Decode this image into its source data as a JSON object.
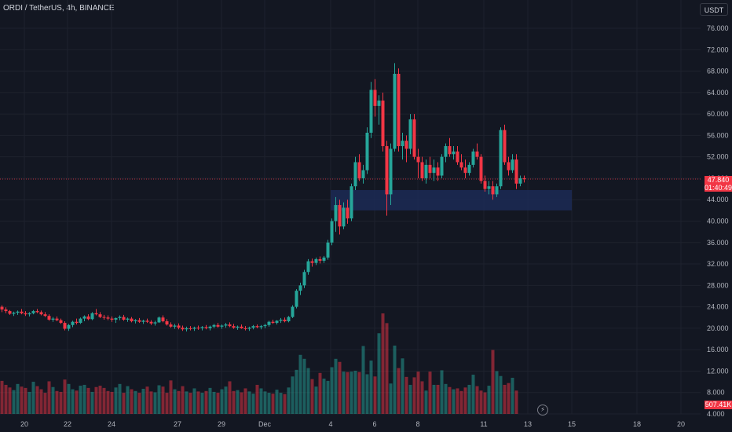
{
  "title": "ORDI / TetherUS, 4h, BINANCE",
  "currency": "USDT",
  "last_price": "47.840",
  "countdown": "01:40:49",
  "volume_label": "507.41K",
  "colors": {
    "up": "#26a69a",
    "down": "#f23645",
    "background": "#131722",
    "grid": "#1e222d",
    "zone": "#1c2a55"
  },
  "chart_data": {
    "type": "candlestick",
    "interval": "4h",
    "symbol": "ORDI / TetherUS",
    "exchange": "BINANCE",
    "y_axis": {
      "min": 4,
      "max": 76,
      "ticks": [
        "76.000",
        "72.000",
        "68.000",
        "64.000",
        "60.000",
        "56.000",
        "52.000",
        "48.000",
        "44.000",
        "40.000",
        "36.000",
        "32.000",
        "28.000",
        "24.000",
        "20.000",
        "16.000",
        "12.000",
        "8.000",
        "4.000"
      ]
    },
    "x_axis": {
      "ticks": [
        "20",
        "22",
        "24",
        "27",
        "29",
        "Dec",
        "4",
        "6",
        "8",
        "11",
        "13",
        "15",
        "18",
        "20"
      ]
    },
    "last_price": 47.84,
    "support_zone": {
      "from": 42.0,
      "to": 45.8
    },
    "candles": [
      [
        24.0,
        24.3,
        23.0,
        23.5
      ],
      [
        23.5,
        23.9,
        22.8,
        23.2
      ],
      [
        23.2,
        23.4,
        22.5,
        22.7
      ],
      [
        22.7,
        23.1,
        22.3,
        22.9
      ],
      [
        22.9,
        23.3,
        22.5,
        23.1
      ],
      [
        23.1,
        23.6,
        22.6,
        22.8
      ],
      [
        22.8,
        23.2,
        22.3,
        22.6
      ],
      [
        22.6,
        23.0,
        22.2,
        22.8
      ],
      [
        22.8,
        23.4,
        22.6,
        23.2
      ],
      [
        23.2,
        23.6,
        22.8,
        23.0
      ],
      [
        23.0,
        23.3,
        22.4,
        22.6
      ],
      [
        22.6,
        23.0,
        22.1,
        22.3
      ],
      [
        22.3,
        22.6,
        21.4,
        21.6
      ],
      [
        21.6,
        22.1,
        21.2,
        21.8
      ],
      [
        21.8,
        22.2,
        21.3,
        21.5
      ],
      [
        21.5,
        21.8,
        20.8,
        21.0
      ],
      [
        21.0,
        21.3,
        19.6,
        19.9
      ],
      [
        19.9,
        20.8,
        19.5,
        20.6
      ],
      [
        20.6,
        21.4,
        20.2,
        21.2
      ],
      [
        21.2,
        21.8,
        20.7,
        21.0
      ],
      [
        21.0,
        22.0,
        20.8,
        21.8
      ],
      [
        21.8,
        22.4,
        21.3,
        22.2
      ],
      [
        22.2,
        22.6,
        21.5,
        21.7
      ],
      [
        21.7,
        23.0,
        21.5,
        22.8
      ],
      [
        22.8,
        23.6,
        22.4,
        22.6
      ],
      [
        22.6,
        23.0,
        21.9,
        22.1
      ],
      [
        22.1,
        22.5,
        21.6,
        22.0
      ],
      [
        22.0,
        22.4,
        21.5,
        21.8
      ],
      [
        21.8,
        22.2,
        21.2,
        21.6
      ],
      [
        21.6,
        22.0,
        21.0,
        21.9
      ],
      [
        21.9,
        22.4,
        21.5,
        22.1
      ],
      [
        22.1,
        22.5,
        21.4,
        21.6
      ],
      [
        21.6,
        22.0,
        21.2,
        21.8
      ],
      [
        21.8,
        22.1,
        21.1,
        21.3
      ],
      [
        21.3,
        21.7,
        20.9,
        21.5
      ],
      [
        21.5,
        21.9,
        21.0,
        21.2
      ],
      [
        21.2,
        21.6,
        20.8,
        21.4
      ],
      [
        21.4,
        21.8,
        21.0,
        21.2
      ],
      [
        21.2,
        21.5,
        20.6,
        20.9
      ],
      [
        20.9,
        21.4,
        20.5,
        21.1
      ],
      [
        21.1,
        22.2,
        21.0,
        22.0
      ],
      [
        22.0,
        22.4,
        21.1,
        21.3
      ],
      [
        21.3,
        21.7,
        20.5,
        20.7
      ],
      [
        20.7,
        21.1,
        20.1,
        20.3
      ],
      [
        20.3,
        20.8,
        19.9,
        20.5
      ],
      [
        20.5,
        20.9,
        19.8,
        20.1
      ],
      [
        20.1,
        20.5,
        19.5,
        19.8
      ],
      [
        19.8,
        20.3,
        19.4,
        20.0
      ],
      [
        20.0,
        20.4,
        19.6,
        19.9
      ],
      [
        19.9,
        20.3,
        19.5,
        20.1
      ],
      [
        20.1,
        20.5,
        19.7,
        20.0
      ],
      [
        20.0,
        20.4,
        19.6,
        20.2
      ],
      [
        20.2,
        20.6,
        19.8,
        20.0
      ],
      [
        20.0,
        20.5,
        19.6,
        20.3
      ],
      [
        20.3,
        20.8,
        20.0,
        20.6
      ],
      [
        20.6,
        21.0,
        20.1,
        20.3
      ],
      [
        20.3,
        20.7,
        19.9,
        20.5
      ],
      [
        20.5,
        21.0,
        20.1,
        20.7
      ],
      [
        20.7,
        21.1,
        20.2,
        20.4
      ],
      [
        20.4,
        20.8,
        19.9,
        20.1
      ],
      [
        20.1,
        20.5,
        19.7,
        20.3
      ],
      [
        20.3,
        20.7,
        19.9,
        20.0
      ],
      [
        20.0,
        20.4,
        19.6,
        19.9
      ],
      [
        19.9,
        20.3,
        19.5,
        20.1
      ],
      [
        20.1,
        20.6,
        19.8,
        20.4
      ],
      [
        20.4,
        20.7,
        20.0,
        20.2
      ],
      [
        20.2,
        20.6,
        19.8,
        20.4
      ],
      [
        20.4,
        20.8,
        20.0,
        20.6
      ],
      [
        20.6,
        21.4,
        20.3,
        21.2
      ],
      [
        21.2,
        21.6,
        20.8,
        21.0
      ],
      [
        21.0,
        21.5,
        20.7,
        21.4
      ],
      [
        21.4,
        21.9,
        21.0,
        21.6
      ],
      [
        21.6,
        22.0,
        21.1,
        21.3
      ],
      [
        21.3,
        22.3,
        21.1,
        22.1
      ],
      [
        22.1,
        24.3,
        21.9,
        24.0
      ],
      [
        24.0,
        27.3,
        23.7,
        27.0
      ],
      [
        27.0,
        28.5,
        26.2,
        28.0
      ],
      [
        28.0,
        30.9,
        27.5,
        30.5
      ],
      [
        30.5,
        32.9,
        30.0,
        32.5
      ],
      [
        32.5,
        33.0,
        31.5,
        32.2
      ],
      [
        32.2,
        33.2,
        31.8,
        32.9
      ],
      [
        32.9,
        33.4,
        32.1,
        32.6
      ],
      [
        32.6,
        33.5,
        32.2,
        33.2
      ],
      [
        33.2,
        36.5,
        32.8,
        36.0
      ],
      [
        36.0,
        40.5,
        35.5,
        40.0
      ],
      [
        40.0,
        44.5,
        38.0,
        43.0
      ],
      [
        43.0,
        44.0,
        37.5,
        39.0
      ],
      [
        39.0,
        43.5,
        38.5,
        42.5
      ],
      [
        42.5,
        44.0,
        39.5,
        40.5
      ],
      [
        40.5,
        47.0,
        40.0,
        46.5
      ],
      [
        46.5,
        52.0,
        45.8,
        51.0
      ],
      [
        51.0,
        52.5,
        47.5,
        48.0
      ],
      [
        48.0,
        50.5,
        47.0,
        49.5
      ],
      [
        49.5,
        57.5,
        48.8,
        56.5
      ],
      [
        56.5,
        66.0,
        55.5,
        64.5
      ],
      [
        64.5,
        66.5,
        59.5,
        61.5
      ],
      [
        61.5,
        63.5,
        58.0,
        62.5
      ],
      [
        62.5,
        64.0,
        53.0,
        54.0
      ],
      [
        54.0,
        55.0,
        41.0,
        45.0
      ],
      [
        45.0,
        54.5,
        43.0,
        53.5
      ],
      [
        53.5,
        69.5,
        53.0,
        67.5
      ],
      [
        67.5,
        68.5,
        53.0,
        54.0
      ],
      [
        54.0,
        56.5,
        51.5,
        55.0
      ],
      [
        55.0,
        56.0,
        51.0,
        53.5
      ],
      [
        53.5,
        60.0,
        52.5,
        59.0
      ],
      [
        59.0,
        60.0,
        51.5,
        52.0
      ],
      [
        52.0,
        53.5,
        48.0,
        51.0
      ],
      [
        51.0,
        52.0,
        47.5,
        48.0
      ],
      [
        48.0,
        51.5,
        47.0,
        50.5
      ],
      [
        50.5,
        52.0,
        48.0,
        49.0
      ],
      [
        49.0,
        51.5,
        47.5,
        50.0
      ],
      [
        50.0,
        51.0,
        47.5,
        48.5
      ],
      [
        48.5,
        52.5,
        48.0,
        52.0
      ],
      [
        52.0,
        54.5,
        51.0,
        54.0
      ],
      [
        54.0,
        55.5,
        52.0,
        52.5
      ],
      [
        52.5,
        54.0,
        51.5,
        53.0
      ],
      [
        53.0,
        54.0,
        50.5,
        51.0
      ],
      [
        51.0,
        52.5,
        49.5,
        50.0
      ],
      [
        50.0,
        51.5,
        48.0,
        49.0
      ],
      [
        49.0,
        51.0,
        48.5,
        50.5
      ],
      [
        50.5,
        53.5,
        50.0,
        53.0
      ],
      [
        53.0,
        54.5,
        51.5,
        52.0
      ],
      [
        52.0,
        52.5,
        47.0,
        47.5
      ],
      [
        47.5,
        48.5,
        45.5,
        46.0
      ],
      [
        46.0,
        47.5,
        45.0,
        46.5
      ],
      [
        46.5,
        47.5,
        44.0,
        45.0
      ],
      [
        45.0,
        47.0,
        44.5,
        46.5
      ],
      [
        46.5,
        57.5,
        46.0,
        57.0
      ],
      [
        57.0,
        58.0,
        50.5,
        51.0
      ],
      [
        51.0,
        52.0,
        48.5,
        49.5
      ],
      [
        49.5,
        52.5,
        49.0,
        51.5
      ],
      [
        51.5,
        52.5,
        46.0,
        47.0
      ],
      [
        47.0,
        48.5,
        46.5,
        48.0
      ],
      [
        48.0,
        48.5,
        47.2,
        47.84
      ]
    ],
    "volumes": [
      7.5,
      6.6,
      6.0,
      5.4,
      6.8,
      6.2,
      5.9,
      5.0,
      7.3,
      6.3,
      5.6,
      4.8,
      7.4,
      6.1,
      5.2,
      5.0,
      7.8,
      6.8,
      5.6,
      5.3,
      6.4,
      6.6,
      5.9,
      5.0,
      6.1,
      6.4,
      5.9,
      5.2,
      5.0,
      6.0,
      6.8,
      4.8,
      6.3,
      5.6,
      5.2,
      4.8,
      5.7,
      6.2,
      5.1,
      4.9,
      6.5,
      6.2,
      4.8,
      7.6,
      5.6,
      5.2,
      6.3,
      5.1,
      4.8,
      5.8,
      5.1,
      4.8,
      5.2,
      5.9,
      5.0,
      4.8,
      5.6,
      6.2,
      7.4,
      5.2,
      5.4,
      4.9,
      5.8,
      5.1,
      4.6,
      6.6,
      5.8,
      5.1,
      4.8,
      4.6,
      5.5,
      4.8,
      4.5,
      6.0,
      8.5,
      10.0,
      13.4,
      12.5,
      10.4,
      7.9,
      6.2,
      9.3,
      8.0,
      7.5,
      10.6,
      12.5,
      11.8,
      9.6,
      9.5,
      9.6,
      9.8,
      9.5,
      15.4,
      9.0,
      12.1,
      8.5,
      18.3,
      22.8,
      20.6,
      6.9,
      15.5,
      10.4,
      12.6,
      8.4,
      6.6,
      8.3,
      9.6,
      7.4,
      5.3,
      9.6,
      6.6,
      6.6,
      9.9,
      6.8,
      6.1,
      5.6,
      5.8,
      5.2,
      6.0,
      6.6,
      8.9,
      6.3,
      5.3,
      4.9,
      6.4,
      14.5,
      9.7,
      8.6,
      6.6,
      7.0,
      8.2,
      5.3
    ]
  }
}
